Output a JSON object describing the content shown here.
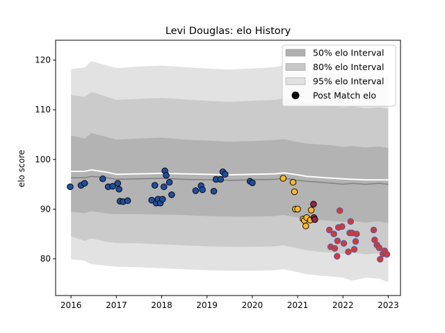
{
  "chart_data": {
    "type": "scatter",
    "title": "Levi Douglas: elo History",
    "xlabel": "",
    "ylabel": "elo score",
    "xlim": [
      2015.66,
      2023.27
    ],
    "ylim": [
      72.6,
      124.0
    ],
    "xticks": [
      2016,
      2017,
      2018,
      2019,
      2020,
      2021,
      2022,
      2023
    ],
    "yticks": [
      80,
      90,
      100,
      110,
      120
    ],
    "grid": false,
    "legend_position": "top-right",
    "legend": [
      {
        "label": "50% elo Interval",
        "kind": "patch",
        "color": "#b0b0b0"
      },
      {
        "label": "80% elo Interval",
        "kind": "patch",
        "color": "#c8c8c8"
      },
      {
        "label": "95% elo Interval",
        "kind": "patch",
        "color": "#e2e2e2"
      },
      {
        "label": "Post Match elo",
        "kind": "marker",
        "color": "#000000"
      }
    ],
    "intervals": {
      "x": [
        2016.0,
        2016.3,
        2016.45,
        2016.8,
        2017.0,
        2017.5,
        2018.0,
        2018.5,
        2019.0,
        2019.5,
        2020.0,
        2020.5,
        2020.7,
        2021.0,
        2021.2,
        2021.5,
        2021.8,
        2022.0,
        2022.2,
        2022.5,
        2022.8,
        2023.0
      ],
      "mean": [
        97.6,
        97.6,
        97.9,
        97.4,
        97.0,
        97.1,
        97.2,
        97.1,
        97.0,
        96.9,
        97.0,
        97.1,
        97.3,
        96.9,
        96.6,
        96.4,
        96.2,
        96.1,
        96.0,
        95.9,
        95.9,
        95.9
      ],
      "median": [
        96.3,
        96.3,
        96.6,
        96.3,
        96.0,
        96.1,
        96.2,
        96.0,
        95.9,
        95.8,
        95.9,
        96.0,
        96.2,
        95.8,
        95.6,
        95.4,
        95.2,
        95.0,
        95.2,
        95.0,
        95.2,
        95.0
      ],
      "p50": {
        "upper": [
          104.8,
          104.2,
          105.3,
          104.5,
          104.0,
          104.2,
          104.4,
          104.0,
          103.8,
          103.6,
          103.7,
          103.9,
          104.1,
          103.5,
          103.2,
          103.0,
          102.8,
          102.5,
          102.7,
          102.4,
          102.6,
          102.3
        ],
        "lower": [
          89.5,
          89.2,
          89.6,
          89.1,
          89.0,
          89.0,
          88.9,
          88.8,
          88.6,
          88.5,
          88.5,
          88.6,
          88.8,
          88.3,
          88.0,
          87.8,
          87.6,
          87.4,
          87.6,
          87.3,
          87.5,
          87.2
        ]
      },
      "p80": {
        "upper": [
          113.0,
          112.6,
          113.6,
          112.6,
          112.0,
          112.2,
          112.4,
          112.1,
          111.8,
          111.6,
          111.8,
          112.0,
          112.3,
          111.7,
          111.3,
          111.0,
          110.8,
          110.5,
          110.7,
          110.3,
          110.5,
          110.2
        ],
        "lower": [
          84.5,
          83.6,
          84.1,
          83.4,
          83.2,
          83.1,
          82.9,
          82.7,
          82.5,
          82.4,
          82.4,
          82.5,
          82.7,
          82.1,
          81.7,
          81.4,
          81.2,
          81.0,
          81.2,
          80.9,
          81.1,
          80.8
        ]
      },
      "p95": {
        "upper": [
          118.2,
          118.5,
          119.8,
          118.9,
          118.4,
          118.7,
          118.9,
          118.6,
          118.3,
          118.1,
          118.3,
          118.6,
          119.0,
          118.2,
          117.8,
          117.5,
          117.3,
          117.0,
          117.2,
          116.8,
          117.0,
          116.7
        ],
        "lower": [
          79.9,
          79.6,
          78.9,
          78.6,
          78.4,
          78.3,
          78.1,
          77.9,
          77.7,
          77.6,
          77.6,
          77.7,
          77.9,
          77.3,
          76.9,
          76.6,
          76.4,
          76.2,
          75.6,
          76.2,
          76.0,
          75.3
        ]
      }
    },
    "series": [
      {
        "color": "#1f4e9c",
        "edge": "#000000",
        "points": [
          [
            2015.98,
            94.5
          ],
          [
            2016.22,
            94.8
          ],
          [
            2016.3,
            95.2
          ],
          [
            2016.7,
            96.1
          ],
          [
            2016.82,
            94.5
          ],
          [
            2016.92,
            94.6
          ],
          [
            2017.03,
            95.2
          ],
          [
            2017.06,
            94.0
          ],
          [
            2017.08,
            91.6
          ],
          [
            2017.15,
            91.5
          ],
          [
            2017.25,
            91.7
          ],
          [
            2017.78,
            91.8
          ],
          [
            2017.85,
            94.8
          ],
          [
            2017.88,
            91.2
          ],
          [
            2017.92,
            92.0
          ],
          [
            2017.97,
            91.2
          ],
          [
            2018.02,
            92.0
          ],
          [
            2018.05,
            94.5
          ],
          [
            2018.07,
            97.7
          ],
          [
            2018.1,
            96.8
          ],
          [
            2018.17,
            95.4
          ],
          [
            2018.22,
            92.9
          ],
          [
            2018.75,
            93.7
          ],
          [
            2018.87,
            94.7
          ],
          [
            2018.9,
            93.9
          ],
          [
            2019.15,
            93.6
          ],
          [
            2019.2,
            96.0
          ],
          [
            2019.3,
            96.0
          ],
          [
            2019.35,
            97.5
          ],
          [
            2019.4,
            97.0
          ],
          [
            2019.95,
            95.6
          ],
          [
            2020.0,
            95.3
          ]
        ]
      },
      {
        "color": "#f5b82a",
        "edge": "#000000",
        "points": [
          [
            2020.68,
            96.2
          ],
          [
            2020.9,
            95.4
          ],
          [
            2020.93,
            93.5
          ],
          [
            2020.95,
            90.0
          ],
          [
            2021.0,
            90.0
          ],
          [
            2021.12,
            88.0
          ],
          [
            2021.15,
            87.7
          ],
          [
            2021.18,
            86.6
          ],
          [
            2021.2,
            88.3
          ],
          [
            2021.28,
            87.8
          ],
          [
            2021.3,
            89.8
          ]
        ]
      },
      {
        "color": "#8b2a48",
        "edge": "#000000",
        "points": [
          [
            2021.35,
            91.0
          ],
          [
            2021.36,
            88.3
          ],
          [
            2021.38,
            87.9
          ]
        ]
      },
      {
        "color": "#d03a3a",
        "edge": "#3b5fb0",
        "points": [
          [
            2021.7,
            85.8
          ],
          [
            2021.73,
            82.4
          ],
          [
            2021.8,
            85.0
          ],
          [
            2021.82,
            82.1
          ],
          [
            2021.87,
            80.5
          ],
          [
            2021.88,
            83.6
          ],
          [
            2021.9,
            86.3
          ],
          [
            2021.93,
            89.7
          ],
          [
            2021.98,
            86.5
          ],
          [
            2022.02,
            83.1
          ],
          [
            2022.12,
            81.4
          ],
          [
            2022.15,
            85.2
          ],
          [
            2022.17,
            87.5
          ],
          [
            2022.2,
            85.2
          ],
          [
            2022.25,
            81.9
          ],
          [
            2022.28,
            83.5
          ],
          [
            2022.3,
            85.0
          ],
          [
            2022.68,
            85.8
          ],
          [
            2022.7,
            83.8
          ],
          [
            2022.75,
            82.8
          ],
          [
            2022.8,
            82.2
          ],
          [
            2022.82,
            79.9
          ],
          [
            2022.88,
            81.0
          ],
          [
            2022.92,
            81.6
          ],
          [
            2022.97,
            80.9
          ]
        ]
      }
    ]
  }
}
